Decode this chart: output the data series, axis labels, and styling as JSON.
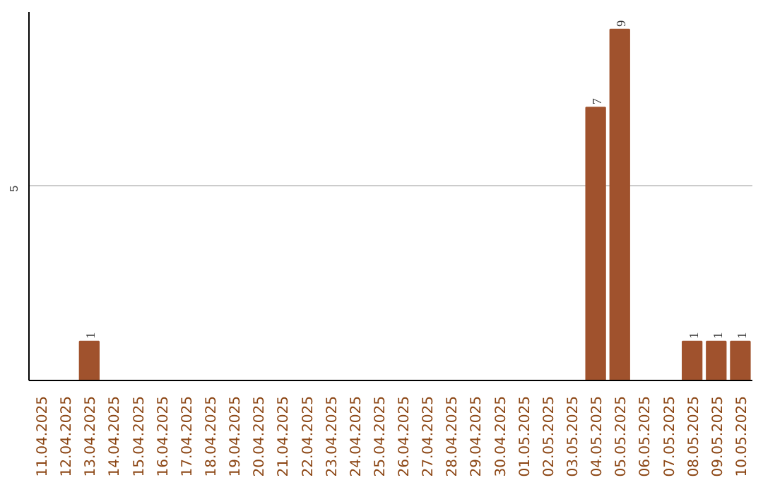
{
  "chart_data": {
    "type": "bar",
    "categories": [
      "11.04.2025",
      "12.04.2025",
      "13.04.2025",
      "14.04.2025",
      "15.04.2025",
      "16.04.2025",
      "17.04.2025",
      "18.04.2025",
      "19.04.2025",
      "20.04.2025",
      "21.04.2025",
      "22.04.2025",
      "23.04.2025",
      "24.04.2025",
      "25.04.2025",
      "26.04.2025",
      "27.04.2025",
      "28.04.2025",
      "29.04.2025",
      "30.04.2025",
      "01.05.2025",
      "02.05.2025",
      "03.05.2025",
      "04.05.2025",
      "05.05.2025",
      "06.05.2025",
      "07.05.2025",
      "08.05.2025",
      "09.05.2025",
      "10.05.2025"
    ],
    "values": [
      0,
      0,
      1,
      0,
      0,
      0,
      0,
      0,
      0,
      0,
      0,
      0,
      0,
      0,
      0,
      0,
      0,
      0,
      0,
      0,
      0,
      0,
      0,
      7,
      9,
      0,
      0,
      1,
      1,
      1
    ],
    "value_labels": [
      null,
      null,
      "1",
      null,
      null,
      null,
      null,
      null,
      null,
      null,
      null,
      null,
      null,
      null,
      null,
      null,
      null,
      null,
      null,
      null,
      null,
      null,
      null,
      "7",
      "9",
      null,
      null,
      "1",
      "1",
      "1"
    ],
    "color": "#a0522d",
    "ylim": [
      0,
      9.45
    ],
    "yticks": [
      5
    ],
    "grid": "y"
  }
}
